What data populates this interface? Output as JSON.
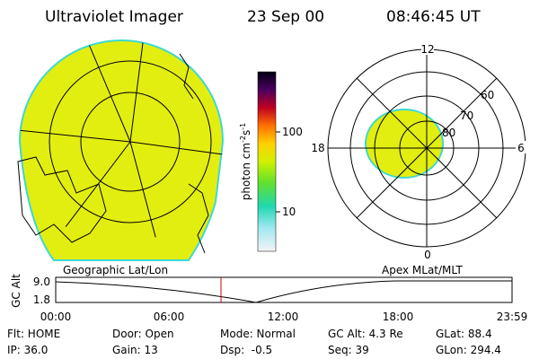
{
  "header": {
    "instrument": "Ultraviolet Imager",
    "date": "23 Sep 00",
    "time": "08:46:45 UT"
  },
  "colorbar": {
    "unit": [
      "photon cm",
      "-2",
      "s",
      "-1"
    ],
    "ticks": [
      "100",
      "10"
    ]
  },
  "polar_plot": {
    "mlt_labels": [
      "12",
      "18",
      "6",
      "0"
    ],
    "mlat_labels": [
      "60",
      "70",
      "80"
    ]
  },
  "map_labels": {
    "left": "Geographic Lat/Lon",
    "right": "Apex MLat/MLT"
  },
  "altitude_plot": {
    "axis_label": "GC Alt",
    "y_labels": [
      "9.0",
      "1.8"
    ],
    "time_labels": [
      "00:00",
      "06:00",
      "12:00",
      "18:00",
      "23:59"
    ]
  },
  "info": [
    [
      "Flt: HOME",
      "IP: 36.0"
    ],
    [
      "Door: Open",
      "Gain: 13"
    ],
    [
      "Mode: Normal",
      "Dsp:  -0.5"
    ],
    [
      "GC Alt: 4.3 Re",
      "Seq: 39"
    ],
    [
      "GLat: 88.4",
      "GLon: 294.4"
    ]
  ]
}
